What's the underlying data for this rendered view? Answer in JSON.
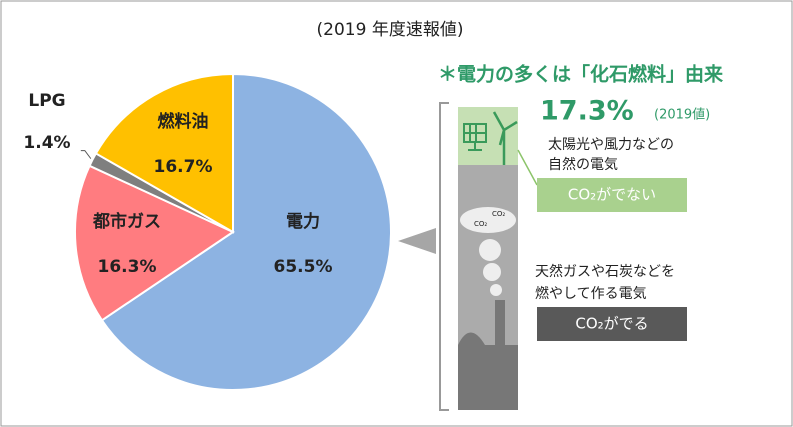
{
  "chart_data": {
    "type": "pie",
    "title": "(2019 年度速報値)",
    "categories": [
      "電力",
      "都市ガス",
      "LPG",
      "燃料油"
    ],
    "values": [
      65.5,
      16.3,
      1.4,
      16.7
    ],
    "value_labels": [
      "65.5%",
      "16.3%",
      "1.4%",
      "16.7%"
    ],
    "colors": [
      "#8db3e2",
      "#ff7c80",
      "#7f7f7f",
      "#ffc000"
    ]
  },
  "infographic": {
    "headline": "＊電力の多くは「化石燃料」由来",
    "share": "17.3%",
    "share_year": "(2019値)",
    "renewable_text": [
      "太陽光や風力などの",
      "自然の電気"
    ],
    "renewable_badge": "CO₂がでない",
    "smoke_labels": [
      "CO₂",
      "CO₂"
    ],
    "fossil_text": [
      "天然ガスや石炭などを",
      "燃やして作る電気"
    ],
    "fossil_badge": "CO₂がでる"
  }
}
